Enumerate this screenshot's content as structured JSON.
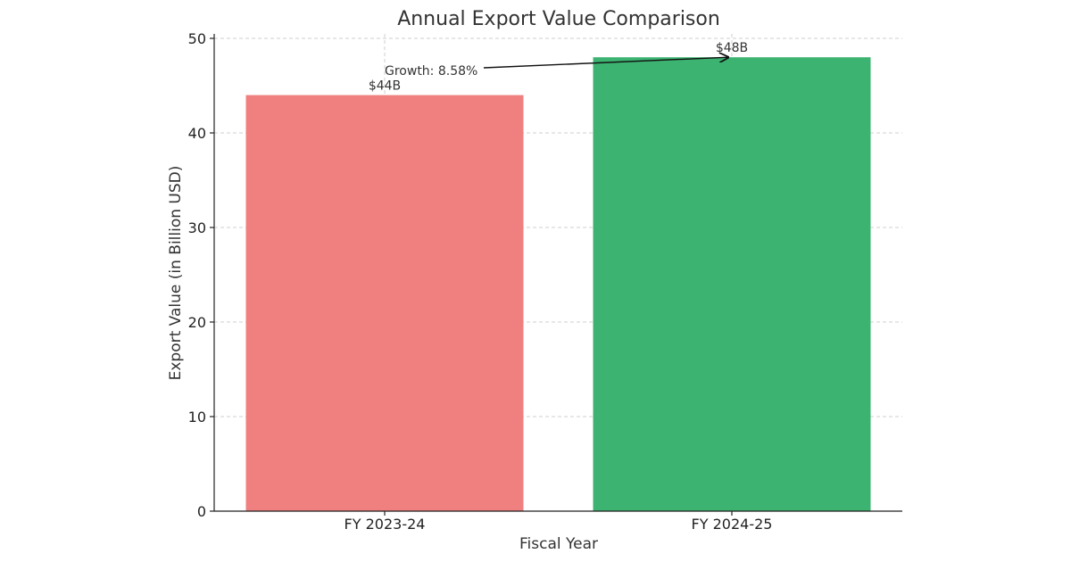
{
  "chart_data": {
    "type": "bar",
    "title": "Annual Export Value Comparison",
    "xlabel": "Fiscal Year",
    "ylabel": "Export Value (in Billion USD)",
    "categories": [
      "FY 2023-24",
      "FY 2024-25"
    ],
    "values": [
      44,
      48
    ],
    "value_labels": [
      "$44B",
      "$48B"
    ],
    "colors": [
      "#f08080",
      "#3cb371"
    ],
    "ylim": [
      0,
      50
    ],
    "yticks": [
      "0",
      "10",
      "20",
      "30",
      "40",
      "50"
    ],
    "grid": true,
    "annotation": {
      "text": "Growth: 8.58%",
      "target_category_index": 1,
      "target_value": 48
    }
  }
}
